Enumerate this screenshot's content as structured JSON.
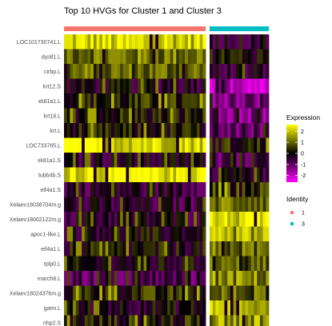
{
  "chart_data": {
    "type": "heatmap",
    "title": "Top 10 HVGs for Cluster 1 and Cluster 3",
    "genes": [
      "LOC101730741.L",
      "dynll1.L",
      "cirbp.L",
      "krt12.S",
      "xk81a1.L",
      "krt18.L",
      "krt.L",
      "LOC733765.L",
      "xk81a1.S",
      "tubb4b.S",
      "eif4a1.S",
      "Xelaev18038704m.g",
      "Xelaev18002122m.g",
      "apoc1-like.L",
      "eif4a1.L",
      "rplp0.L",
      "march8.L",
      "Xelaev18024376m.g",
      "gatm.L",
      "nhp2.S"
    ],
    "clusters": [
      {
        "name": "1",
        "color": "#F8766D",
        "cells": 48
      },
      {
        "name": "3",
        "color": "#00BFC4",
        "cells": 20
      }
    ],
    "cluster_row_means": {
      "1": [
        2.1,
        1.2,
        1.0,
        -0.2,
        0.3,
        0.2,
        0.1,
        2.3,
        -0.3,
        2.4,
        -0.4,
        -0.5,
        -0.3,
        -0.1,
        0.0,
        -0.2,
        -0.8,
        0.3,
        -0.1,
        0.2
      ],
      "3": [
        -0.3,
        0.1,
        -0.4,
        -1.8,
        -1.1,
        -1.3,
        -0.9,
        0.2,
        -0.9,
        -0.3,
        0.4,
        1.2,
        2.2,
        1.6,
        1.0,
        0.8,
        1.3,
        0.9,
        1.8,
        1.5
      ]
    },
    "colorbar": {
      "title": "Expression",
      "range": [
        -2.6,
        2.6
      ],
      "ticks": [
        2,
        1,
        0,
        -1,
        -2
      ],
      "colors": [
        "#FF00FF",
        "#000000",
        "#FFFF00"
      ]
    },
    "identity_legend": {
      "title": "Identity",
      "items": [
        {
          "label": "1",
          "color": "#F8766D"
        },
        {
          "label": "3",
          "color": "#00BFC4"
        }
      ]
    }
  }
}
